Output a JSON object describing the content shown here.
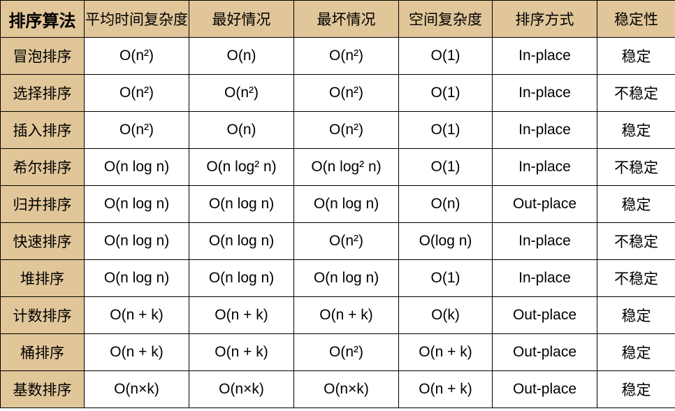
{
  "table": {
    "header_bg": "#e1c699",
    "cell_bg": "#ffffff",
    "border_color": "#000000",
    "columns": [
      "排序算法",
      "平均时间复杂度",
      "最好情况",
      "最坏情况",
      "空间复杂度",
      "排序方式",
      "稳定性"
    ],
    "rows": [
      {
        "name": "冒泡排序",
        "avg": "O(n²)",
        "best": "O(n)",
        "worst": "O(n²)",
        "space": "O(1)",
        "mode": "In-place",
        "stable": "稳定"
      },
      {
        "name": "选择排序",
        "avg": "O(n²)",
        "best": "O(n²)",
        "worst": "O(n²)",
        "space": "O(1)",
        "mode": "In-place",
        "stable": "不稳定"
      },
      {
        "name": "插入排序",
        "avg": "O(n²)",
        "best": "O(n)",
        "worst": "O(n²)",
        "space": "O(1)",
        "mode": "In-place",
        "stable": "稳定"
      },
      {
        "name": "希尔排序",
        "avg": "O(n log n)",
        "best": "O(n log² n)",
        "worst": "O(n log² n)",
        "space": "O(1)",
        "mode": "In-place",
        "stable": "不稳定"
      },
      {
        "name": "归并排序",
        "avg": "O(n log n)",
        "best": "O(n log n)",
        "worst": "O(n log n)",
        "space": "O(n)",
        "mode": "Out-place",
        "stable": "稳定"
      },
      {
        "name": "快速排序",
        "avg": "O(n log n)",
        "best": "O(n log n)",
        "worst": "O(n²)",
        "space": "O(log n)",
        "mode": "In-place",
        "stable": "不稳定"
      },
      {
        "name": "堆排序",
        "avg": "O(n log n)",
        "best": "O(n log n)",
        "worst": "O(n log n)",
        "space": "O(1)",
        "mode": "In-place",
        "stable": "不稳定"
      },
      {
        "name": "计数排序",
        "avg": "O(n + k)",
        "best": "O(n + k)",
        "worst": "O(n + k)",
        "space": "O(k)",
        "mode": "Out-place",
        "stable": "稳定"
      },
      {
        "name": "桶排序",
        "avg": "O(n + k)",
        "best": "O(n + k)",
        "worst": "O(n²)",
        "space": "O(n + k)",
        "mode": "Out-place",
        "stable": "稳定"
      },
      {
        "name": "基数排序",
        "avg": "O(n×k)",
        "best": "O(n×k)",
        "worst": "O(n×k)",
        "space": "O(n + k)",
        "mode": "Out-place",
        "stable": "稳定"
      }
    ]
  }
}
